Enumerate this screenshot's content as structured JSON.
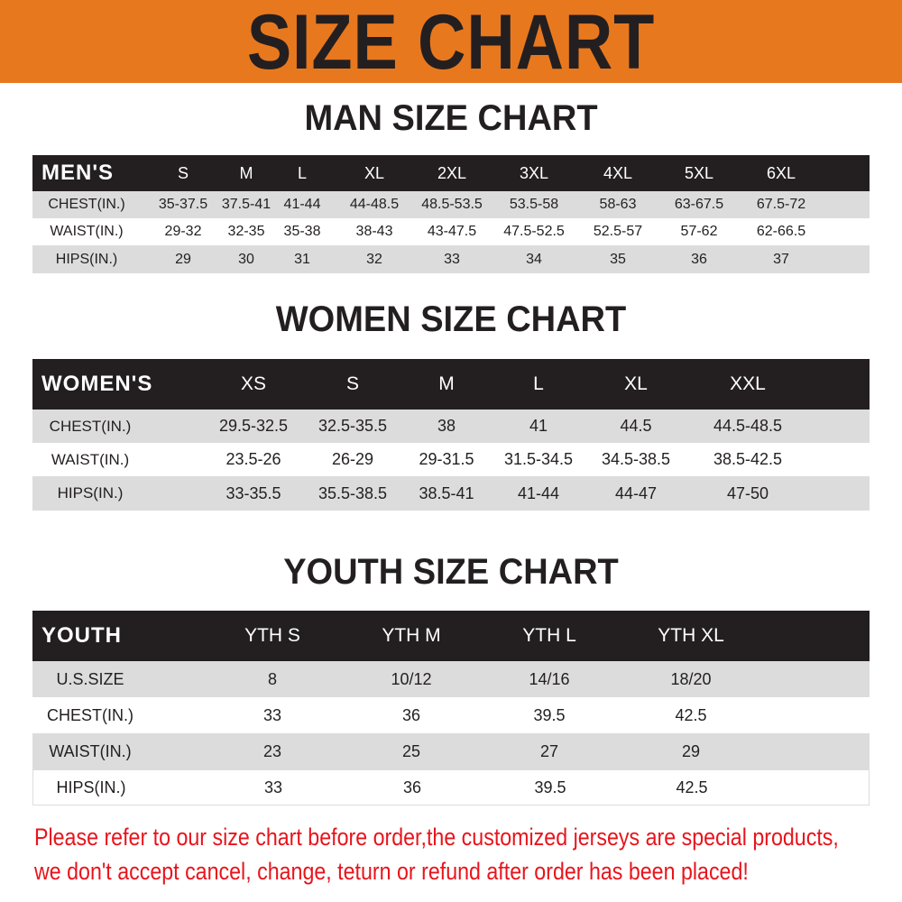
{
  "banner": {
    "title": "SIZE CHART",
    "color": "#e8781e"
  },
  "men": {
    "heading": "MAN SIZE CHART",
    "header": [
      "MEN'S",
      "S",
      "M",
      "L",
      "XL",
      "2XL",
      "3XL",
      "4XL",
      "5XL",
      "6XL"
    ],
    "rows": [
      [
        "CHEST(IN.)",
        "35-37.5",
        "37.5-41",
        "41-44",
        "44-48.5",
        "48.5-53.5",
        "53.5-58",
        "58-63",
        "63-67.5",
        "67.5-72"
      ],
      [
        "WAIST(IN.)",
        "29-32",
        "32-35",
        "35-38",
        "38-43",
        "43-47.5",
        "47.5-52.5",
        "52.5-57",
        "57-62",
        "62-66.5"
      ],
      [
        "HIPS(IN.)",
        "29",
        "30",
        "31",
        "32",
        "33",
        "34",
        "35",
        "36",
        "37"
      ]
    ]
  },
  "women": {
    "heading": "WOMEN SIZE CHART",
    "header": [
      "WOMEN'S",
      "XS",
      "S",
      "M",
      "L",
      "XL",
      "XXL"
    ],
    "rows": [
      [
        "CHEST(IN.)",
        "29.5-32.5",
        "32.5-35.5",
        "38",
        "41",
        "44.5",
        "44.5-48.5"
      ],
      [
        "WAIST(IN.)",
        "23.5-26",
        "26-29",
        "29-31.5",
        "31.5-34.5",
        "34.5-38.5",
        "38.5-42.5"
      ],
      [
        "HIPS(IN.)",
        "33-35.5",
        "35.5-38.5",
        "38.5-41",
        "41-44",
        "44-47",
        "47-50"
      ]
    ]
  },
  "youth": {
    "heading": "YOUTH SIZE CHART",
    "header": [
      "YOUTH",
      "YTH S",
      "YTH M",
      "YTH L",
      "YTH XL"
    ],
    "rows": [
      [
        "U.S.SIZE",
        "8",
        "10/12",
        "14/16",
        "18/20"
      ],
      [
        "CHEST(IN.)",
        "33",
        "36",
        "39.5",
        "42.5"
      ],
      [
        "WAIST(IN.)",
        "23",
        "25",
        "27",
        "29"
      ],
      [
        "HIPS(IN.)",
        "33",
        "36",
        "39.5",
        "42.5"
      ]
    ]
  },
  "notice": {
    "line1": "Please refer to our size chart before order,the customized jerseys are special products,",
    "line2": "we don't accept cancel, change, teturn or refund after order has been placed!",
    "color": "#e8141c"
  }
}
